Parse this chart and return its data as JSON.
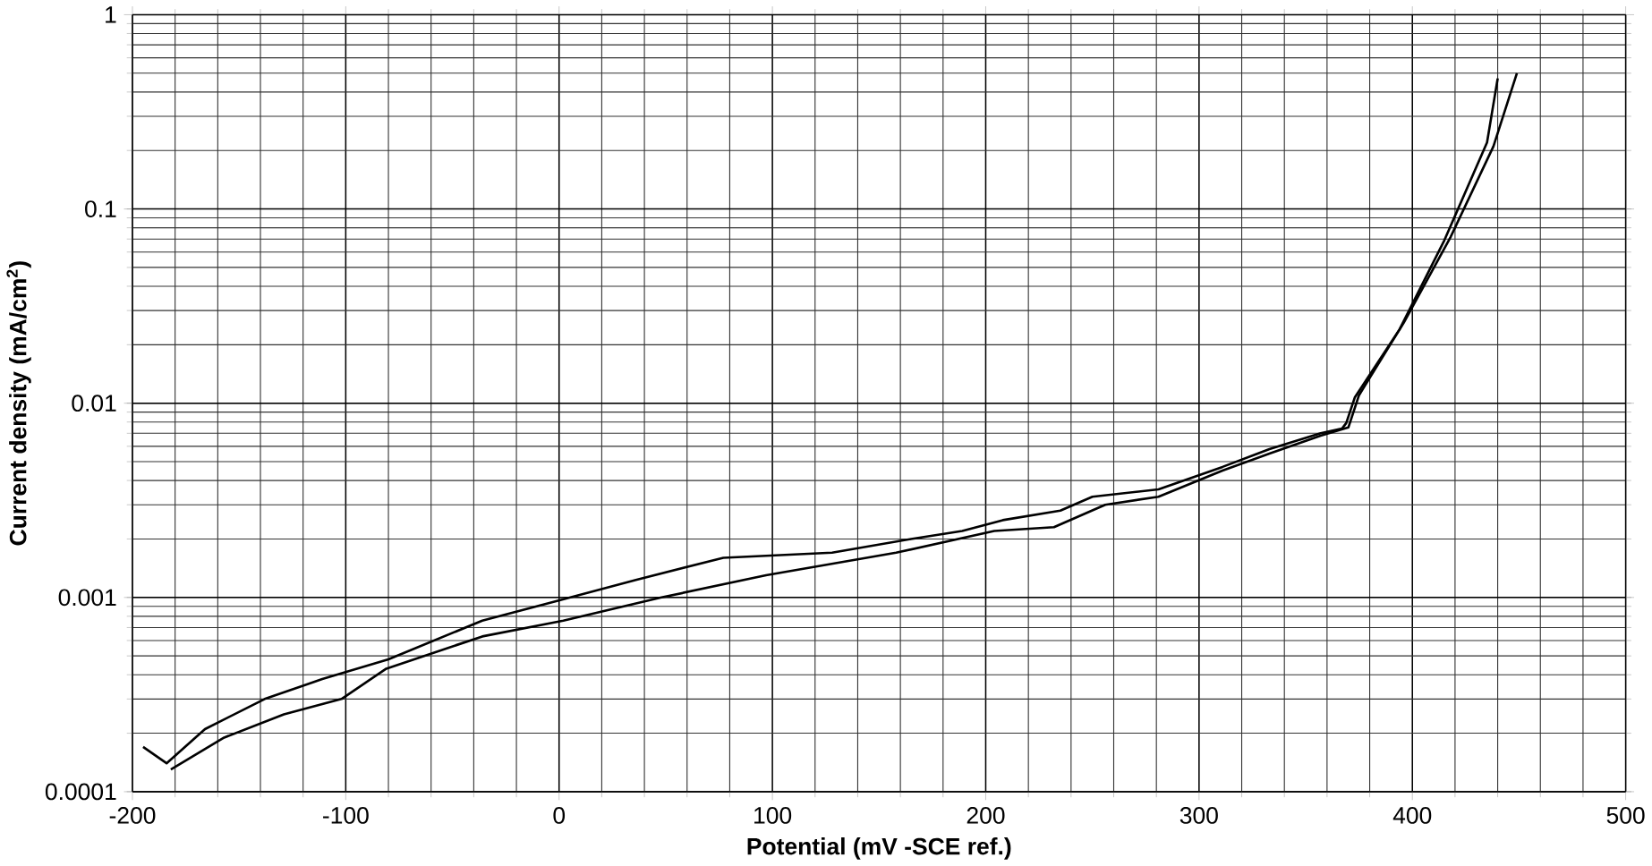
{
  "chart_data": {
    "type": "line",
    "xlabel": "Potential (mV -SCE ref.)",
    "ylabel": "Current density (mA/cm$^{2}$)",
    "log": "y",
    "grid": true,
    "marker": "none",
    "line_style": "solid",
    "xlim": [
      -200,
      500
    ],
    "xticks": [
      -200,
      -100,
      0,
      100,
      200,
      300,
      400,
      500
    ],
    "ylim": [
      0.0001,
      1
    ],
    "yticks": [
      0.0001,
      0.001,
      0.01,
      0.1,
      1
    ],
    "series": [
      {
        "color": "#000000",
        "x": [
          -195,
          -184,
          -166,
          -138,
          -111,
          -80,
          -36,
          -1,
          36,
          77,
          128,
          165,
          189,
          208,
          235,
          250,
          281,
          311,
          333,
          357,
          367,
          369,
          373,
          394,
          415,
          435,
          440
        ],
        "values": [
          0.00017,
          0.00014,
          0.00021,
          0.0003,
          0.00038,
          0.00048,
          0.00076,
          0.00096,
          0.00123,
          0.0016,
          0.0017,
          0.002,
          0.0022,
          0.0025,
          0.0028,
          0.0033,
          0.0036,
          0.0047,
          0.0058,
          0.007,
          0.0074,
          0.0079,
          0.0107,
          0.024,
          0.069,
          0.22,
          0.47
        ]
      },
      {
        "color": "#000000",
        "x": [
          -182,
          -157,
          -129,
          -102,
          -81,
          -36,
          2,
          48,
          97,
          158,
          204,
          232,
          256,
          281,
          311,
          333,
          357,
          370,
          375,
          396,
          418,
          438,
          449
        ],
        "values": [
          0.00013,
          0.00019,
          0.00025,
          0.0003,
          0.00043,
          0.00063,
          0.00076,
          0.001,
          0.0013,
          0.0017,
          0.0022,
          0.0023,
          0.003,
          0.0033,
          0.0045,
          0.0055,
          0.0068,
          0.0075,
          0.011,
          0.026,
          0.072,
          0.21,
          0.5
        ]
      }
    ]
  }
}
